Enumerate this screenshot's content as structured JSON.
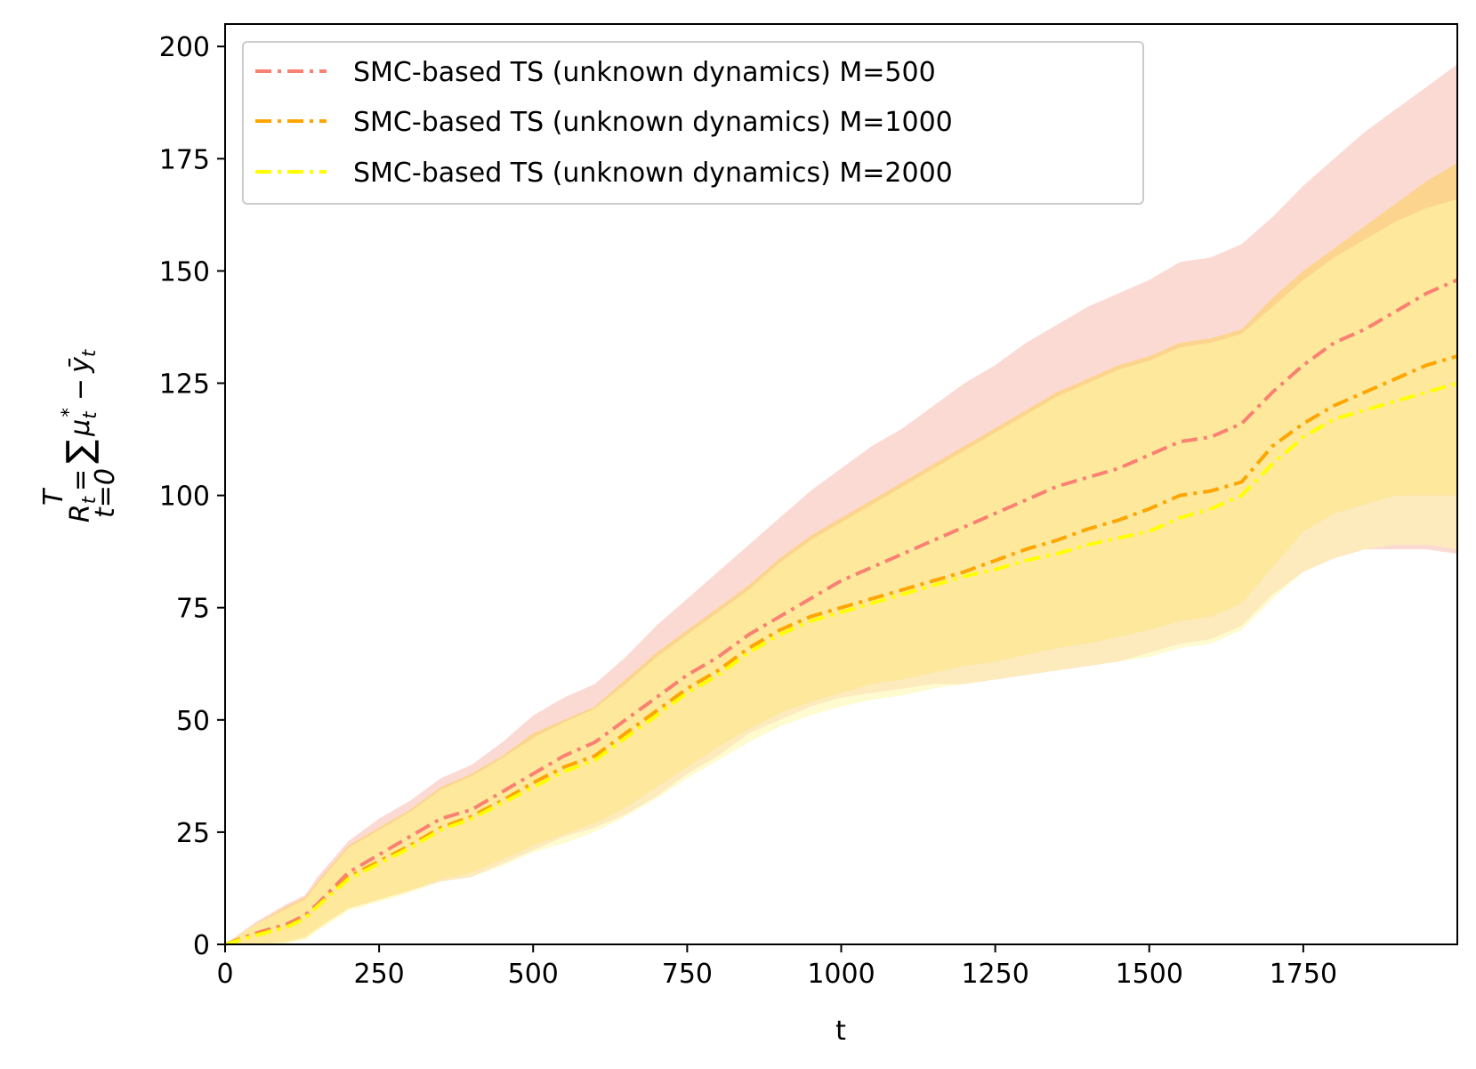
{
  "chart_data": {
    "type": "line",
    "title": "",
    "xlabel": "t",
    "ylabel_parts": [
      "R",
      "t",
      "=",
      "∑",
      "T",
      "t=0",
      "μ",
      "t",
      "*",
      "−",
      "ȳ",
      "t"
    ],
    "xlim": [
      0,
      2000
    ],
    "ylim": [
      0,
      205
    ],
    "xticks": [
      0,
      250,
      500,
      750,
      1000,
      1250,
      1500,
      1750
    ],
    "xtick_labels": [
      "0",
      "250",
      "500",
      "750",
      "1000",
      "1250",
      "1500",
      "1750"
    ],
    "yticks": [
      0,
      25,
      50,
      75,
      100,
      125,
      150,
      175,
      200
    ],
    "ytick_labels": [
      "0",
      "25",
      "50",
      "75",
      "100",
      "125",
      "150",
      "175",
      "200"
    ],
    "grid": false,
    "legend_position": "top-left",
    "x": [
      0,
      50,
      100,
      130,
      150,
      200,
      250,
      300,
      350,
      400,
      450,
      500,
      550,
      600,
      650,
      700,
      750,
      800,
      850,
      900,
      950,
      1000,
      1050,
      1100,
      1150,
      1200,
      1250,
      1300,
      1350,
      1400,
      1450,
      1500,
      1550,
      1600,
      1650,
      1700,
      1750,
      1800,
      1850,
      1900,
      1950,
      2000
    ],
    "series": [
      {
        "name": "SMC-based TS (unknown dynamics) M=500",
        "color": "#fa8072",
        "fill_color": "#fcd3cd",
        "mean": [
          0,
          2.5,
          4.5,
          6.5,
          9,
          16,
          20,
          24,
          28,
          30,
          34,
          38,
          42,
          45,
          50,
          55,
          60,
          64,
          69,
          73,
          77,
          81,
          84,
          87,
          90,
          93,
          96,
          99,
          102,
          104,
          106,
          109,
          112,
          113,
          116,
          123,
          129,
          134,
          137,
          141,
          145,
          148
        ],
        "upper": [
          0,
          5,
          9,
          11,
          15,
          23,
          28,
          32,
          37,
          40,
          45,
          51,
          55,
          58,
          64,
          71,
          77,
          83,
          89,
          95,
          101,
          106,
          111,
          115,
          120,
          125,
          129,
          134,
          138,
          142,
          145,
          148,
          152,
          153,
          156,
          162,
          169,
          175,
          181,
          186,
          191,
          196
        ],
        "lower": [
          0,
          0,
          1,
          2,
          4,
          8,
          10,
          12,
          14,
          15,
          18,
          21,
          24,
          26,
          29,
          33,
          38,
          42,
          47,
          50,
          53,
          55,
          56,
          57,
          58,
          58,
          59,
          60,
          61,
          62,
          63,
          65,
          67,
          68,
          71,
          78,
          83,
          86,
          88,
          88,
          88,
          87
        ]
      },
      {
        "name": "SMC-based TS (unknown dynamics) M=1000",
        "color": "#ffa500",
        "fill_color": "#fcd275",
        "mean": [
          0,
          2.2,
          4,
          6,
          8.5,
          15,
          18.5,
          22,
          26,
          28.5,
          32,
          36,
          39.5,
          42,
          47,
          52,
          57,
          61,
          66,
          70,
          73,
          75,
          77,
          79,
          81,
          83,
          85.5,
          88,
          90,
          92.5,
          94.5,
          97,
          100,
          101,
          103,
          111,
          116,
          120,
          123,
          126,
          129,
          131
        ],
        "upper": [
          0,
          4.5,
          8.5,
          10.5,
          14,
          22,
          26,
          30,
          35,
          38,
          42,
          47,
          50,
          53,
          59,
          65,
          70,
          75,
          80,
          86,
          91,
          95,
          99,
          103,
          107,
          111,
          115,
          119,
          123,
          126,
          129,
          131,
          134,
          135,
          137,
          144,
          150,
          155,
          160,
          165,
          170,
          174
        ],
        "lower": [
          0,
          0,
          0.5,
          1.5,
          3.5,
          8,
          10,
          12,
          14.5,
          16,
          19,
          22,
          24.5,
          27,
          30.5,
          35,
          39.5,
          44,
          48,
          51.5,
          54,
          56,
          58,
          59,
          60.5,
          62,
          63,
          64.5,
          66,
          67,
          68.5,
          70,
          72,
          73,
          76,
          84,
          92,
          96,
          98,
          100,
          100,
          100
        ]
      },
      {
        "name": "SMC-based TS (unknown dynamics) M=2000",
        "color": "#ffff00",
        "fill_color": "#fdf7aa",
        "mean": [
          0,
          2,
          3.8,
          5.8,
          8.5,
          14.5,
          18,
          21.5,
          25.5,
          28,
          31.5,
          35,
          38.5,
          41,
          46,
          51,
          56,
          60,
          65,
          69,
          72,
          74,
          76,
          78,
          80,
          82,
          83.5,
          85.5,
          87,
          89,
          90.5,
          92,
          95,
          97,
          100,
          107,
          113,
          117,
          119,
          121,
          123,
          125
        ],
        "upper": [
          0,
          4.5,
          8,
          10,
          13.5,
          21.5,
          25.5,
          29.5,
          34.5,
          37.5,
          41.5,
          46,
          49.5,
          52.5,
          58,
          64,
          69,
          74,
          79,
          85,
          90,
          94,
          98,
          102,
          106,
          110,
          114,
          118,
          122,
          125,
          128,
          130,
          133,
          134,
          136,
          142,
          148,
          153,
          157,
          161,
          164,
          166
        ],
        "lower": [
          0,
          0,
          0.3,
          1,
          3,
          7.5,
          9.5,
          11.5,
          14,
          15,
          17.5,
          20.5,
          22.5,
          25,
          28.5,
          32.5,
          37,
          41,
          45,
          48.5,
          51,
          53,
          54.5,
          55.5,
          57,
          58,
          59,
          60,
          61,
          62,
          63,
          64,
          66,
          67,
          70,
          77,
          83,
          86,
          88,
          89,
          89,
          88
        ]
      }
    ]
  }
}
